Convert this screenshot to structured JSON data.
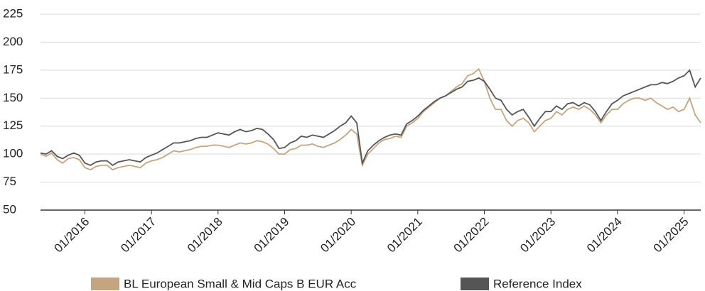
{
  "chart_data": {
    "type": "line",
    "x": [
      "05/2015",
      "06/2015",
      "07/2015",
      "08/2015",
      "09/2015",
      "10/2015",
      "11/2015",
      "12/2015",
      "01/2016",
      "02/2016",
      "03/2016",
      "04/2016",
      "05/2016",
      "06/2016",
      "07/2016",
      "08/2016",
      "09/2016",
      "10/2016",
      "11/2016",
      "12/2016",
      "01/2017",
      "02/2017",
      "03/2017",
      "04/2017",
      "05/2017",
      "06/2017",
      "07/2017",
      "08/2017",
      "09/2017",
      "10/2017",
      "11/2017",
      "12/2017",
      "01/2018",
      "02/2018",
      "03/2018",
      "04/2018",
      "05/2018",
      "06/2018",
      "07/2018",
      "08/2018",
      "09/2018",
      "10/2018",
      "11/2018",
      "12/2018",
      "01/2019",
      "02/2019",
      "03/2019",
      "04/2019",
      "05/2019",
      "06/2019",
      "07/2019",
      "08/2019",
      "09/2019",
      "10/2019",
      "11/2019",
      "12/2019",
      "01/2020",
      "02/2020",
      "03/2020",
      "04/2020",
      "05/2020",
      "06/2020",
      "07/2020",
      "08/2020",
      "09/2020",
      "10/2020",
      "11/2020",
      "12/2020",
      "01/2021",
      "02/2021",
      "03/2021",
      "04/2021",
      "05/2021",
      "06/2021",
      "07/2021",
      "08/2021",
      "09/2021",
      "10/2021",
      "11/2021",
      "12/2021",
      "01/2022",
      "02/2022",
      "03/2022",
      "04/2022",
      "05/2022",
      "06/2022",
      "07/2022",
      "08/2022",
      "09/2022",
      "10/2022",
      "11/2022",
      "12/2022",
      "01/2023",
      "02/2023",
      "03/2023",
      "04/2023",
      "05/2023",
      "06/2023",
      "07/2023",
      "08/2023",
      "09/2023",
      "10/2023",
      "11/2023",
      "12/2023",
      "01/2024",
      "02/2024",
      "03/2024",
      "04/2024",
      "05/2024",
      "06/2024",
      "07/2024",
      "08/2024",
      "09/2024",
      "10/2024",
      "11/2024",
      "12/2024",
      "01/2025",
      "02/2025",
      "03/2025",
      "04/2025"
    ],
    "series": [
      {
        "name": "BL European Small & Mid Caps B EUR Acc",
        "color": "#c4a57f",
        "values": [
          100,
          98,
          101,
          95,
          92,
          96,
          97,
          95,
          88,
          86,
          89,
          90,
          90,
          86,
          88,
          89,
          90,
          89,
          88,
          92,
          94,
          95,
          97,
          100,
          103,
          102,
          103,
          104,
          106,
          107,
          107,
          108,
          108,
          107,
          106,
          108,
          110,
          109,
          110,
          112,
          111,
          109,
          105,
          100,
          100,
          104,
          105,
          108,
          108,
          109,
          107,
          106,
          108,
          110,
          113,
          117,
          122,
          118,
          90,
          100,
          105,
          110,
          113,
          114,
          116,
          115,
          125,
          128,
          132,
          138,
          142,
          146,
          150,
          152,
          156,
          160,
          163,
          170,
          172,
          176,
          165,
          150,
          140,
          140,
          130,
          125,
          130,
          132,
          128,
          120,
          125,
          130,
          132,
          138,
          135,
          140,
          142,
          140,
          143,
          140,
          135,
          128,
          135,
          140,
          140,
          145,
          148,
          150,
          150,
          148,
          150,
          146,
          143,
          140,
          142,
          138,
          140,
          150,
          135,
          128
        ]
      },
      {
        "name": "Reference Index",
        "color": "#555555",
        "values": [
          101,
          100,
          103,
          98,
          96,
          99,
          101,
          99,
          92,
          90,
          93,
          94,
          94,
          90,
          93,
          94,
          95,
          94,
          93,
          97,
          99,
          101,
          104,
          107,
          110,
          110,
          111,
          112,
          114,
          115,
          115,
          117,
          119,
          118,
          117,
          120,
          122,
          120,
          121,
          123,
          122,
          118,
          113,
          105,
          106,
          110,
          112,
          116,
          115,
          117,
          116,
          115,
          118,
          121,
          125,
          128,
          134,
          128,
          92,
          103,
          108,
          112,
          115,
          117,
          118,
          117,
          127,
          130,
          134,
          139,
          143,
          147,
          150,
          152,
          155,
          158,
          160,
          165,
          166,
          168,
          165,
          158,
          150,
          148,
          140,
          135,
          138,
          140,
          133,
          125,
          132,
          138,
          138,
          143,
          140,
          145,
          146,
          143,
          146,
          144,
          138,
          130,
          138,
          145,
          148,
          152,
          154,
          156,
          158,
          160,
          162,
          162,
          164,
          163,
          165,
          168,
          170,
          175,
          160,
          168
        ]
      }
    ],
    "xlim": [
      "05/2015",
      "04/2025"
    ],
    "xticks": [
      "01/2016",
      "01/2017",
      "01/2018",
      "01/2019",
      "01/2020",
      "01/2021",
      "01/2022",
      "01/2023",
      "01/2024",
      "01/2025"
    ],
    "ylim": [
      50,
      225
    ],
    "yticks": [
      50,
      75,
      100,
      125,
      150,
      175,
      200,
      225
    ],
    "grid": true
  }
}
